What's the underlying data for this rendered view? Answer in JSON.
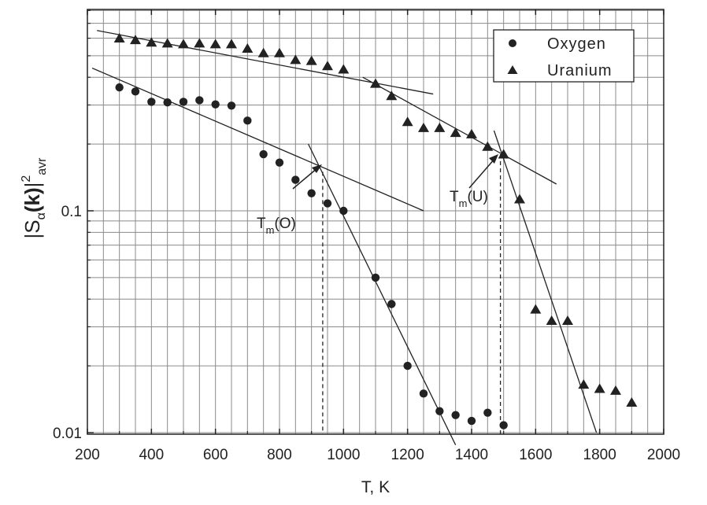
{
  "chart_data": {
    "type": "scatter",
    "xlabel": "T, K",
    "ylabel": {
      "main": "|S",
      "sub": "α",
      "bold": "(k)",
      "bar": "|",
      "sup": "2",
      "sub2": "avr"
    },
    "x_range": [
      200,
      2000
    ],
    "y_range": [
      0.009,
      0.75
    ],
    "y_scale": "log",
    "grid": true,
    "x_ticks": [
      200,
      400,
      600,
      800,
      1000,
      1200,
      1400,
      1600,
      1800,
      2000
    ],
    "x_tick_labels": [
      "200",
      "400",
      "600",
      "800",
      "1000",
      "1200",
      "1400",
      "1600",
      "1800",
      "2000"
    ],
    "y_ticks": [
      0.01,
      0.1
    ],
    "y_tick_labels": [
      "0.01",
      "0.1"
    ],
    "legend": {
      "position": "top-right",
      "entries": [
        {
          "label": "Oxygen",
          "marker": "circle"
        },
        {
          "label": "Uranium",
          "marker": "triangle"
        }
      ]
    },
    "series": [
      {
        "name": "Oxygen",
        "marker": "circle",
        "points": [
          [
            300,
            0.36
          ],
          [
            350,
            0.345
          ],
          [
            400,
            0.31
          ],
          [
            450,
            0.308
          ],
          [
            500,
            0.31
          ],
          [
            550,
            0.315
          ],
          [
            600,
            0.302
          ],
          [
            650,
            0.298
          ],
          [
            700,
            0.255
          ],
          [
            750,
            0.18
          ],
          [
            800,
            0.165
          ],
          [
            850,
            0.138
          ],
          [
            900,
            0.12
          ],
          [
            950,
            0.108
          ],
          [
            1000,
            0.1
          ],
          [
            1100,
            0.05
          ],
          [
            1150,
            0.038
          ],
          [
            1200,
            0.02
          ],
          [
            1250,
            0.015
          ],
          [
            1300,
            0.0125
          ],
          [
            1350,
            0.012
          ],
          [
            1400,
            0.0113
          ],
          [
            1450,
            0.0123
          ],
          [
            1500,
            0.0108
          ]
        ]
      },
      {
        "name": "Uranium",
        "marker": "triangle",
        "points": [
          [
            300,
            0.6
          ],
          [
            350,
            0.59
          ],
          [
            400,
            0.575
          ],
          [
            450,
            0.57
          ],
          [
            500,
            0.565
          ],
          [
            550,
            0.57
          ],
          [
            600,
            0.565
          ],
          [
            650,
            0.565
          ],
          [
            700,
            0.54
          ],
          [
            750,
            0.515
          ],
          [
            800,
            0.515
          ],
          [
            850,
            0.48
          ],
          [
            900,
            0.475
          ],
          [
            950,
            0.45
          ],
          [
            1000,
            0.435
          ],
          [
            1100,
            0.375
          ],
          [
            1150,
            0.33
          ],
          [
            1200,
            0.252
          ],
          [
            1250,
            0.237
          ],
          [
            1300,
            0.237
          ],
          [
            1350,
            0.225
          ],
          [
            1400,
            0.222
          ],
          [
            1450,
            0.195
          ],
          [
            1500,
            0.18
          ],
          [
            1550,
            0.113
          ],
          [
            1600,
            0.036
          ],
          [
            1650,
            0.032
          ],
          [
            1700,
            0.032
          ],
          [
            1750,
            0.0165
          ],
          [
            1800,
            0.0158
          ],
          [
            1850,
            0.0155
          ],
          [
            1900,
            0.0137
          ]
        ]
      }
    ],
    "fit_lines": [
      {
        "from": [
          230,
          0.65
        ],
        "to": [
          1280,
          0.336
        ]
      },
      {
        "from": [
          215,
          0.44
        ],
        "to": [
          1250,
          0.1
        ]
      },
      {
        "from": [
          1060,
          0.4
        ],
        "to": [
          1665,
          0.132
        ]
      },
      {
        "from": [
          890,
          0.2
        ],
        "to": [
          1350,
          0.0088
        ]
      },
      {
        "from": [
          1470,
          0.23
        ],
        "to": [
          1790,
          0.01
        ]
      }
    ],
    "markers": [
      {
        "id": "tm-o",
        "label": "T",
        "sub": "m",
        "suffix": "(O)",
        "x": 935,
        "y_top": 0.15
      },
      {
        "id": "tm-u",
        "label": "T",
        "sub": "m",
        "suffix": "(U)",
        "x": 1490,
        "y_top": 0.18
      }
    ]
  }
}
